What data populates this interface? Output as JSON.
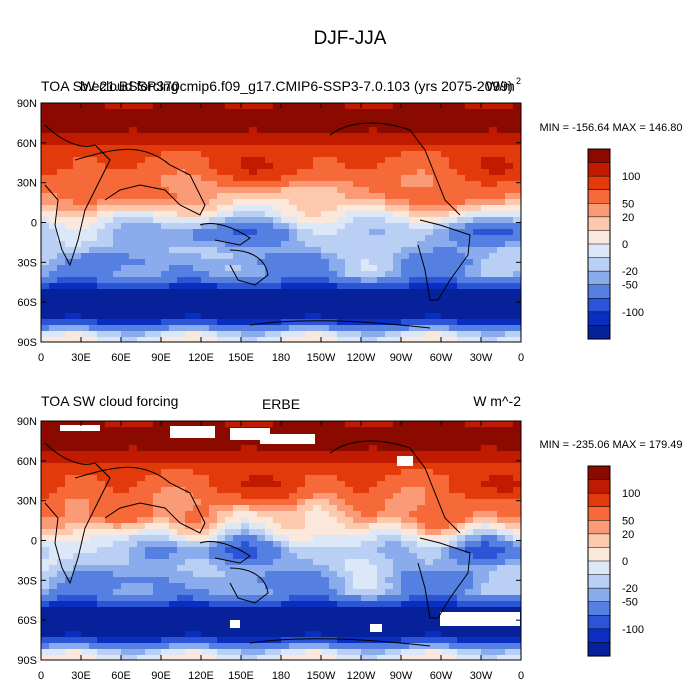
{
  "figure": {
    "title": "DJF-JJA"
  },
  "chart_data": [
    {
      "type": "contour-map",
      "title_left": "TOA SW cloud forcing",
      "title_center": "b.e21.BSSP370cmip6.f09_g17.CMIP6-SSP3-7.0.103 (yrs 2075-2099)",
      "title_right": "W/m",
      "title_right_sup": "2",
      "stats": "MIN = -156.64 MAX = 146.80",
      "lat_ticks": [
        "90N",
        "60N",
        "30N",
        "0",
        "30S",
        "60S",
        "90S"
      ],
      "lon_ticks": [
        "0",
        "30E",
        "60E",
        "90E",
        "120E",
        "150E",
        "180",
        "150W",
        "120W",
        "90W",
        "60W",
        "30W",
        "0"
      ],
      "colorbar_labels": [
        "100",
        "50",
        "20",
        "0",
        "-20",
        "-50",
        "-100"
      ],
      "colorbar_colors": [
        "#8b0a00",
        "#c01a00",
        "#e23a0a",
        "#f56a38",
        "#fb9a76",
        "#fdc9ad",
        "#fbe8dc",
        "#dce8f8",
        "#b9cff3",
        "#8aacec",
        "#5580e2",
        "#2b55d6",
        "#0a2fc0",
        "#06219a"
      ],
      "value_range": [
        -156.64,
        146.8
      ]
    },
    {
      "type": "contour-map",
      "title_left": "TOA SW cloud forcing",
      "title_center": "ERBE",
      "title_right": "W m^-2",
      "stats": "MIN = -235.06 MAX = 179.49",
      "lat_ticks": [
        "90N",
        "60N",
        "30N",
        "0",
        "30S",
        "60S",
        "90S"
      ],
      "lon_ticks": [
        "0",
        "30E",
        "60E",
        "90E",
        "120E",
        "150E",
        "180",
        "150W",
        "120W",
        "90W",
        "60W",
        "30W",
        "0"
      ],
      "colorbar_labels": [
        "100",
        "50",
        "20",
        "0",
        "-20",
        "-50",
        "-100"
      ],
      "colorbar_colors": [
        "#8b0a00",
        "#c01a00",
        "#e23a0a",
        "#f56a38",
        "#fb9a76",
        "#fdc9ad",
        "#fbe8dc",
        "#dce8f8",
        "#b9cff3",
        "#8aacec",
        "#5580e2",
        "#2b55d6",
        "#0a2fc0",
        "#06219a"
      ],
      "value_range": [
        -235.06,
        179.49
      ]
    }
  ]
}
